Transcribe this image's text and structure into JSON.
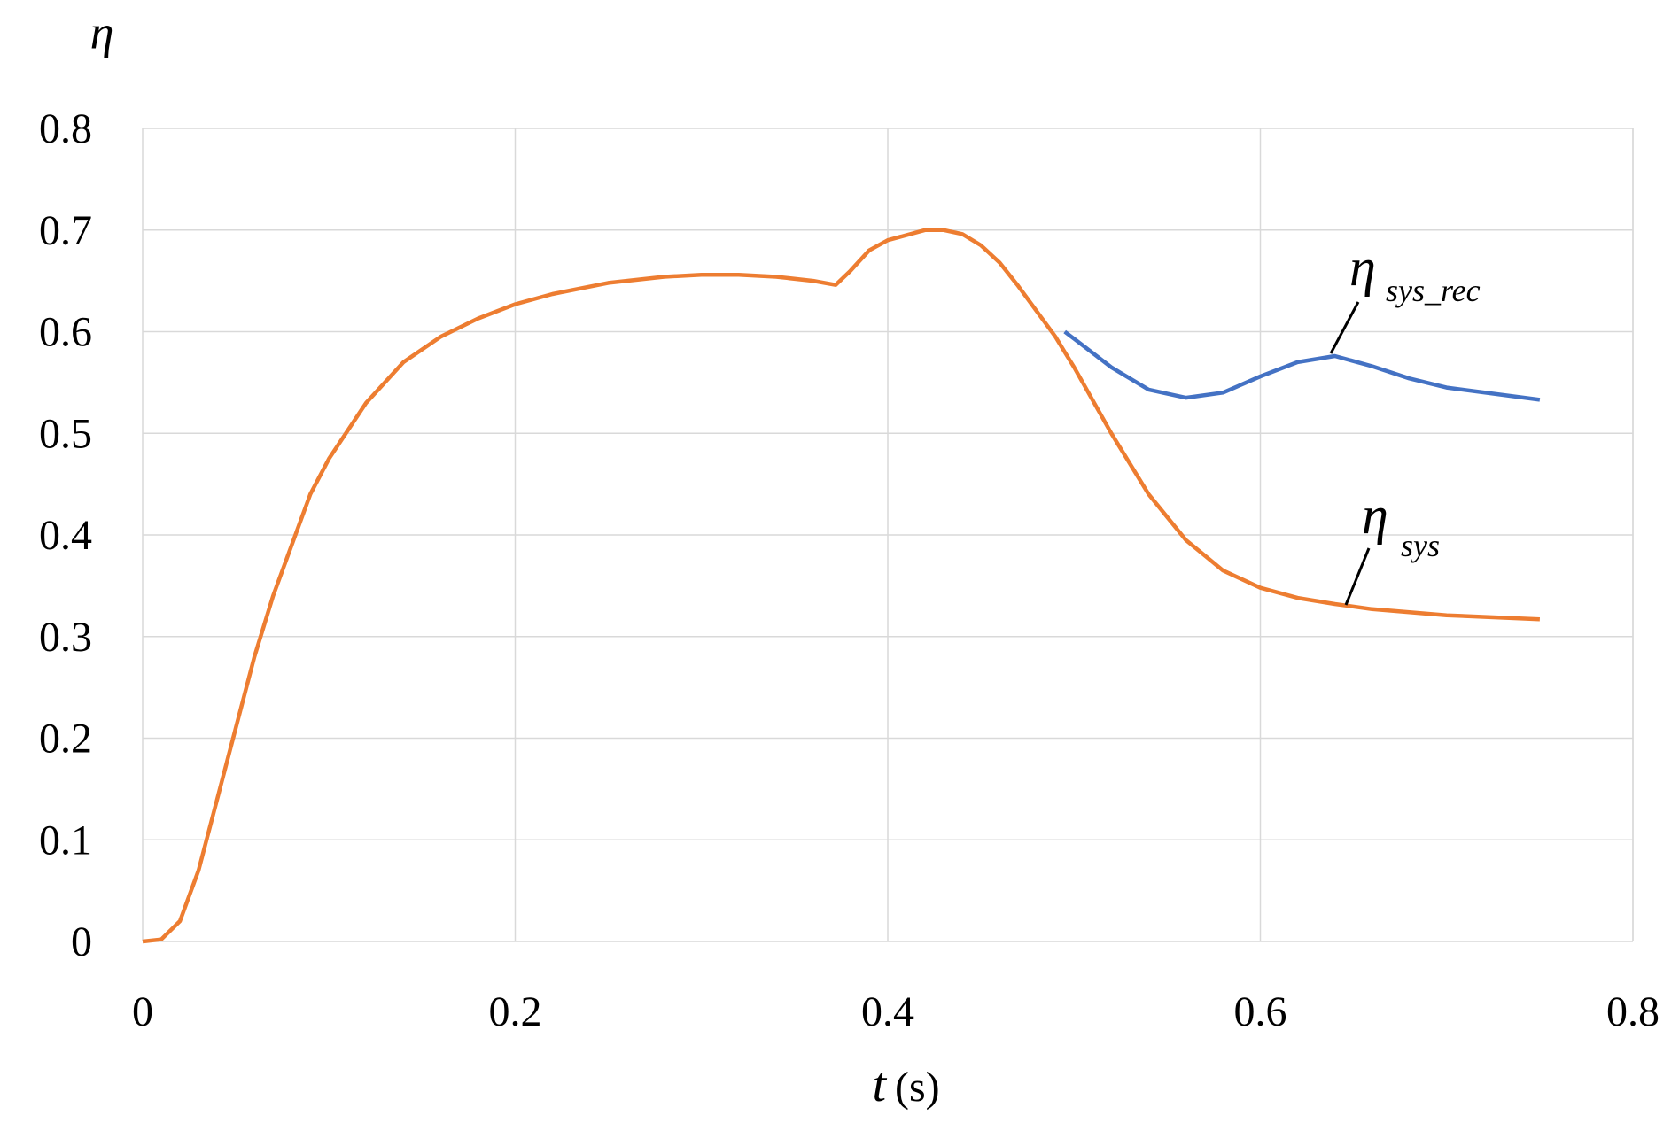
{
  "chart_data": {
    "type": "line",
    "y_label": "η",
    "x_label_symbol": "t",
    "x_label_unit": "(s)",
    "x": [
      0,
      0.01,
      0.02,
      0.03,
      0.04,
      0.05,
      0.06,
      0.07,
      0.08,
      0.09,
      0.1,
      0.12,
      0.14,
      0.16,
      0.18,
      0.2,
      0.22,
      0.25,
      0.28,
      0.3,
      0.32,
      0.34,
      0.36,
      0.372,
      0.38,
      0.39,
      0.4,
      0.42,
      0.43,
      0.44,
      0.45,
      0.46,
      0.47,
      0.48,
      0.49,
      0.495,
      0.5,
      0.52,
      0.54,
      0.56,
      0.58,
      0.6,
      0.62,
      0.64,
      0.66,
      0.68,
      0.7,
      0.75
    ],
    "series": [
      {
        "name": "η",
        "name_subscript": "sys_rec",
        "color": "#4472c4",
        "values": [
          null,
          null,
          null,
          null,
          null,
          null,
          null,
          null,
          null,
          null,
          null,
          null,
          null,
          null,
          null,
          null,
          null,
          null,
          null,
          null,
          null,
          null,
          null,
          null,
          null,
          null,
          null,
          null,
          null,
          null,
          null,
          null,
          null,
          null,
          null,
          0.6,
          0.593,
          0.565,
          0.543,
          0.535,
          0.54,
          0.556,
          0.57,
          0.576,
          0.566,
          0.554,
          0.545,
          0.533
        ]
      },
      {
        "name": "η",
        "name_subscript": "sys",
        "color": "#ed7d31",
        "values": [
          0,
          0.002,
          0.02,
          0.07,
          0.14,
          0.21,
          0.28,
          0.34,
          0.39,
          0.44,
          0.475,
          0.53,
          0.57,
          0.595,
          0.613,
          0.627,
          0.637,
          0.648,
          0.654,
          0.656,
          0.656,
          0.654,
          0.65,
          0.646,
          0.66,
          0.68,
          0.69,
          0.7,
          0.7,
          0.696,
          0.685,
          0.668,
          0.645,
          0.62,
          0.595,
          0.58,
          0.565,
          0.5,
          0.44,
          0.395,
          0.365,
          0.348,
          0.338,
          0.332,
          0.327,
          0.324,
          0.321,
          0.317
        ]
      }
    ],
    "xlim": [
      0,
      0.8
    ],
    "xticks": [
      0,
      0.2,
      0.4,
      0.6,
      0.8
    ],
    "ylim": [
      0,
      0.8
    ],
    "yticks": [
      0,
      0.1,
      0.2,
      0.3,
      0.4,
      0.5,
      0.6,
      0.7,
      0.8
    ],
    "grid": true
  }
}
